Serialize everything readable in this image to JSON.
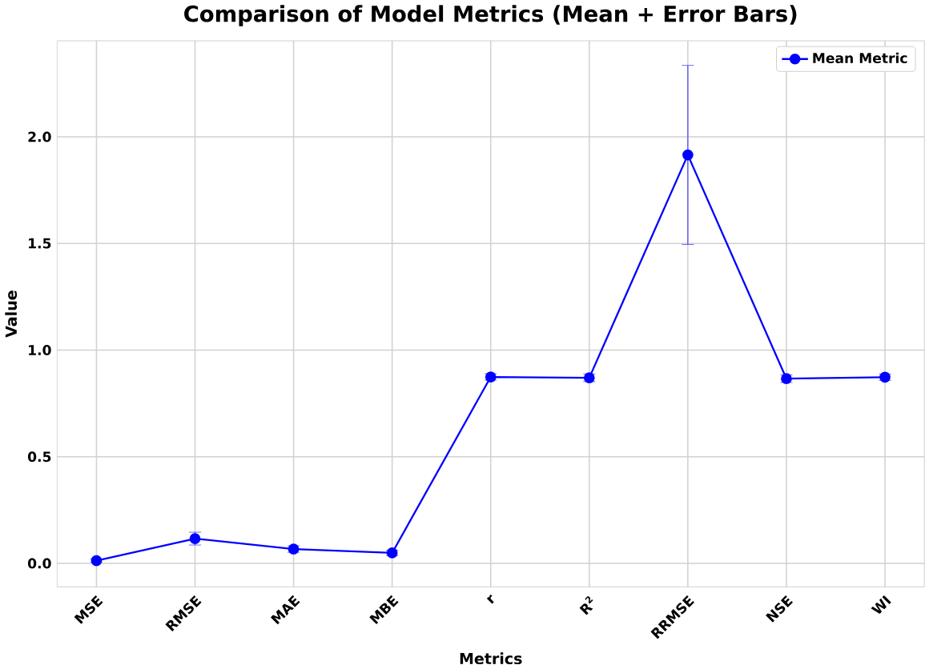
{
  "chart_data": {
    "type": "line",
    "title": "Comparison of Model Metrics (Mean + Error Bars)",
    "xlabel": "Metrics",
    "ylabel": "Value",
    "categories": [
      "MSE",
      "RMSE",
      "MAE",
      "MBE",
      "r",
      "R$^{2}$",
      "RRMSE",
      "NSE",
      "WI"
    ],
    "series": [
      {
        "name": "Mean Metric",
        "color": "#0000ff",
        "values": [
          0.013,
          0.116,
          0.067,
          0.049,
          0.874,
          0.87,
          1.915,
          0.866,
          0.873
        ],
        "errors": [
          0.008,
          0.03,
          0.015,
          0.012,
          0.015,
          0.018,
          0.42,
          0.018,
          0.015
        ]
      }
    ],
    "ylim": [
      -0.11,
      2.45
    ],
    "yticks": [
      {
        "value": 0,
        "label": "0.0"
      },
      0.5,
      {
        "value": 1,
        "label": "1.0"
      },
      1.5,
      {
        "value": 2,
        "label": "2.0"
      }
    ],
    "grid": true,
    "legend": "top right",
    "marker": "circle",
    "line_style": "solid"
  }
}
